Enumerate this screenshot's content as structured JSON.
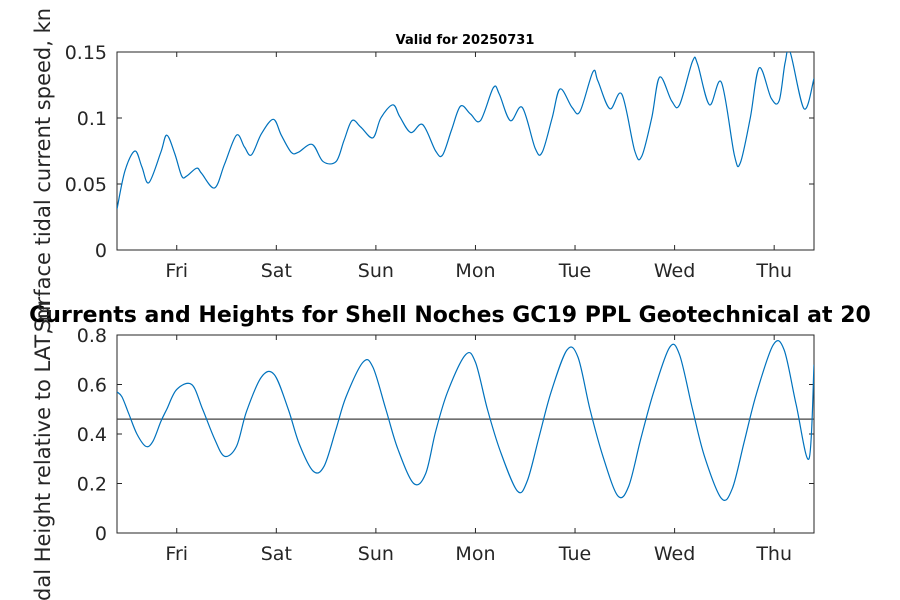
{
  "charts": {
    "top": {
      "title": "Valid for 20250731",
      "ylabel": "Surface tidal current speed, kn"
    },
    "bottom": {
      "title": "Currents and Heights for Shell Noches   GC19 PPL  Geotechnical at 20",
      "ylabel": "Tidal Height relative to LAT, m"
    }
  },
  "chart_data": [
    {
      "type": "line",
      "title": "Valid for 20250731",
      "xlabel": "",
      "ylabel": "Surface tidal current speed, kn",
      "xlim": [
        0,
        7
      ],
      "ylim": [
        0,
        0.15
      ],
      "x_ticks": [
        0.6,
        1.6,
        2.6,
        3.6,
        4.6,
        5.6,
        6.6
      ],
      "x_tick_labels": [
        "Fri",
        "Sat",
        "Sun",
        "Mon",
        "Tue",
        "Wed",
        "Thu"
      ],
      "y_ticks": [
        0,
        0.05,
        0.1,
        0.15
      ],
      "y_tick_labels": [
        "0",
        "0.05",
        "0.1",
        "0.15"
      ],
      "grid": false,
      "series": [
        {
          "color": "#0072bd",
          "x": [
            0.0,
            0.08,
            0.18,
            0.25,
            0.32,
            0.44,
            0.5,
            0.58,
            0.65,
            0.7,
            0.8,
            0.85,
            0.98,
            1.08,
            1.2,
            1.28,
            1.35,
            1.45,
            1.57,
            1.65,
            1.75,
            1.82,
            1.96,
            2.07,
            2.2,
            2.28,
            2.36,
            2.45,
            2.57,
            2.65,
            2.77,
            2.84,
            2.95,
            3.07,
            3.2,
            3.27,
            3.36,
            3.45,
            3.55,
            3.65,
            3.78,
            3.84,
            3.95,
            4.07,
            4.2,
            4.27,
            4.37,
            4.45,
            4.57,
            4.65,
            4.78,
            4.83,
            4.95,
            5.07,
            5.2,
            5.27,
            5.37,
            5.45,
            5.57,
            5.65,
            5.78,
            5.83,
            5.95,
            6.07,
            6.2,
            6.26,
            6.36,
            6.45,
            6.57,
            6.65,
            6.71,
            6.76,
            6.9,
            7.0
          ],
          "y": [
            0.031,
            0.06,
            0.075,
            0.063,
            0.051,
            0.074,
            0.087,
            0.073,
            0.056,
            0.056,
            0.062,
            0.058,
            0.047,
            0.065,
            0.087,
            0.078,
            0.072,
            0.088,
            0.099,
            0.087,
            0.074,
            0.074,
            0.08,
            0.067,
            0.067,
            0.083,
            0.098,
            0.093,
            0.085,
            0.1,
            0.11,
            0.101,
            0.089,
            0.095,
            0.075,
            0.072,
            0.091,
            0.109,
            0.103,
            0.098,
            0.123,
            0.118,
            0.098,
            0.108,
            0.077,
            0.074,
            0.1,
            0.122,
            0.108,
            0.105,
            0.135,
            0.128,
            0.107,
            0.118,
            0.075,
            0.071,
            0.1,
            0.131,
            0.113,
            0.11,
            0.143,
            0.141,
            0.11,
            0.127,
            0.072,
            0.066,
            0.1,
            0.138,
            0.115,
            0.113,
            0.142,
            0.15,
            0.107,
            0.13
          ]
        }
      ]
    },
    {
      "type": "line",
      "title": "Currents and Heights for Shell Noches   GC19 PPL  Geotechnical at 20",
      "xlabel": "",
      "ylabel": "Tidal Height relative to LAT, m",
      "xlim": [
        0,
        7
      ],
      "ylim": [
        0,
        0.8
      ],
      "x_ticks": [
        0.6,
        1.6,
        2.6,
        3.6,
        4.6,
        5.6,
        6.6
      ],
      "x_tick_labels": [
        "Fri",
        "Sat",
        "Sun",
        "Mon",
        "Tue",
        "Wed",
        "Thu"
      ],
      "y_ticks": [
        0,
        0.2,
        0.4,
        0.6,
        0.8
      ],
      "y_tick_labels": [
        "0",
        "0.2",
        "0.4",
        "0.6",
        "0.8"
      ],
      "grid": false,
      "reference_line": {
        "y": 0.46,
        "color": "#404040"
      },
      "series": [
        {
          "color": "#0072bd",
          "x": [
            0.0,
            0.05,
            0.12,
            0.2,
            0.29,
            0.36,
            0.44,
            0.5,
            0.6,
            0.75,
            0.86,
            0.98,
            1.08,
            1.2,
            1.3,
            1.45,
            1.58,
            1.72,
            1.83,
            1.97,
            2.08,
            2.2,
            2.3,
            2.47,
            2.57,
            2.7,
            2.82,
            2.98,
            3.1,
            3.2,
            3.32,
            3.5,
            3.6,
            3.72,
            3.85,
            4.02,
            4.12,
            4.24,
            4.36,
            4.52,
            4.63,
            4.75,
            4.88,
            5.03,
            5.14,
            5.26,
            5.39,
            5.55,
            5.65,
            5.78,
            5.9,
            6.07,
            6.18,
            6.3,
            6.42,
            6.59,
            6.7,
            6.82,
            6.95,
            7.0
          ],
          "y": [
            0.57,
            0.55,
            0.48,
            0.4,
            0.35,
            0.37,
            0.45,
            0.5,
            0.58,
            0.6,
            0.5,
            0.38,
            0.31,
            0.35,
            0.49,
            0.63,
            0.64,
            0.5,
            0.36,
            0.25,
            0.27,
            0.42,
            0.55,
            0.69,
            0.67,
            0.5,
            0.34,
            0.2,
            0.24,
            0.41,
            0.57,
            0.72,
            0.69,
            0.5,
            0.33,
            0.17,
            0.21,
            0.39,
            0.57,
            0.74,
            0.71,
            0.5,
            0.31,
            0.15,
            0.19,
            0.38,
            0.57,
            0.75,
            0.72,
            0.5,
            0.31,
            0.14,
            0.18,
            0.37,
            0.56,
            0.76,
            0.74,
            0.52,
            0.3,
            0.68
          ]
        }
      ]
    }
  ]
}
